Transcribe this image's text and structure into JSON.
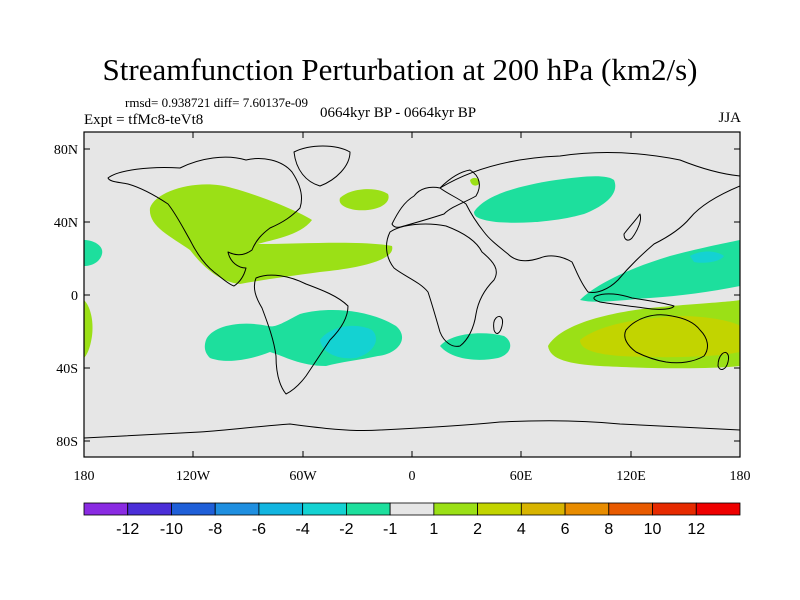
{
  "title": "Streamfunction Perturbation at 200 hPa (km2/s)",
  "stats_text": "rmsd= 0.938721 diff= 7.60137e-09",
  "expt_text": "Expt = tfMc8-teVt8",
  "period_text": "0664kyr BP - 0664kyr BP",
  "season_text": "JJA",
  "lat_labels": [
    "80N",
    "40N",
    "0",
    "40S",
    "80S"
  ],
  "lon_labels": [
    "180",
    "120W",
    "60W",
    "0",
    "60E",
    "120E",
    "180"
  ],
  "colorbar": {
    "labels": [
      "-12",
      "-10",
      "-8",
      "-6",
      "-4",
      "-2",
      "-1",
      "1",
      "2",
      "4",
      "6",
      "8",
      "10",
      "12"
    ],
    "colors": [
      "#8a2be2",
      "#4b2ed8",
      "#1f5fd8",
      "#1f8fe0",
      "#12b5e0",
      "#14d2d2",
      "#1ddf9d",
      "#e6e6e6",
      "#9be016",
      "#c2d400",
      "#d8b400",
      "#e88c00",
      "#e85a00",
      "#e62a00",
      "#ee0000"
    ]
  },
  "map_colors": {
    "background": "#e6e6e6",
    "pos_1_2": "#9be016",
    "pos_2_4": "#c2d400",
    "neg_1_2": "#1ddf9d",
    "neg_2_4": "#14d2d2"
  }
}
